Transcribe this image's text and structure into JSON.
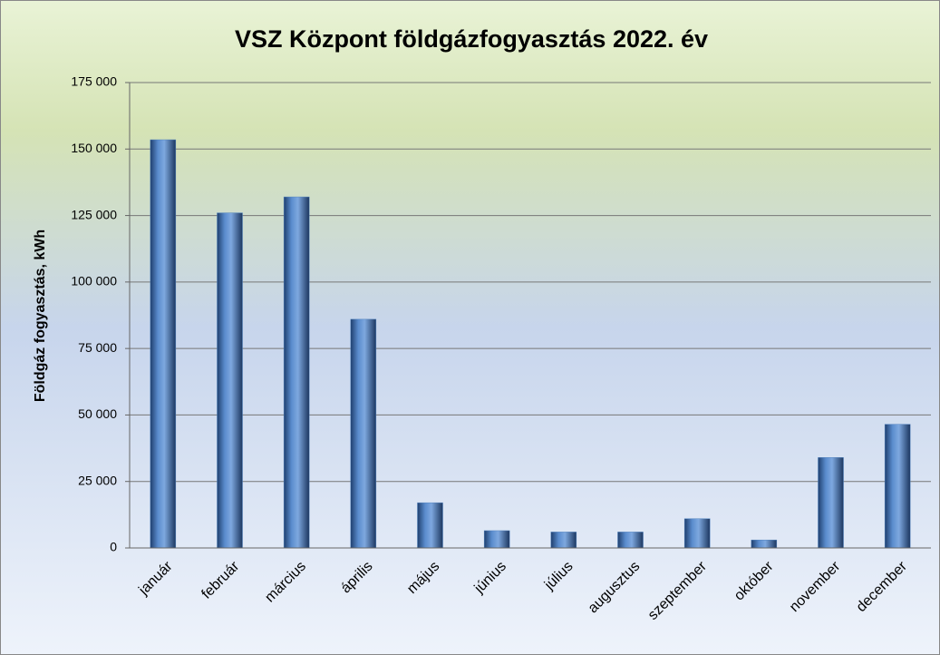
{
  "chart_data": {
    "type": "bar",
    "title": "VSZ Központ földgázfogyasztás 2022. év",
    "y_label": "Földgáz fogyasztás, kWh",
    "categories": [
      "január",
      "február",
      "március",
      "április",
      "május",
      "június",
      "július",
      "augusztus",
      "szeptember",
      "október",
      "november",
      "december"
    ],
    "values": [
      153500,
      126000,
      132000,
      86000,
      17000,
      6500,
      6000,
      6000,
      11000,
      3000,
      34000,
      46500
    ],
    "color": "#4f81bd",
    "ylim": [
      0,
      175000
    ],
    "yticks": [
      {
        "value": 0,
        "label": "0"
      },
      {
        "value": 25000,
        "label": "25 000"
      },
      {
        "value": 50000,
        "label": "50 000"
      },
      {
        "value": 75000,
        "label": "75 000"
      },
      {
        "value": 100000,
        "label": "100 000"
      },
      {
        "value": 125000,
        "label": "125 000"
      },
      {
        "value": 150000,
        "label": "150 000"
      },
      {
        "value": 175000,
        "label": "175 000"
      }
    ],
    "grid": true
  }
}
